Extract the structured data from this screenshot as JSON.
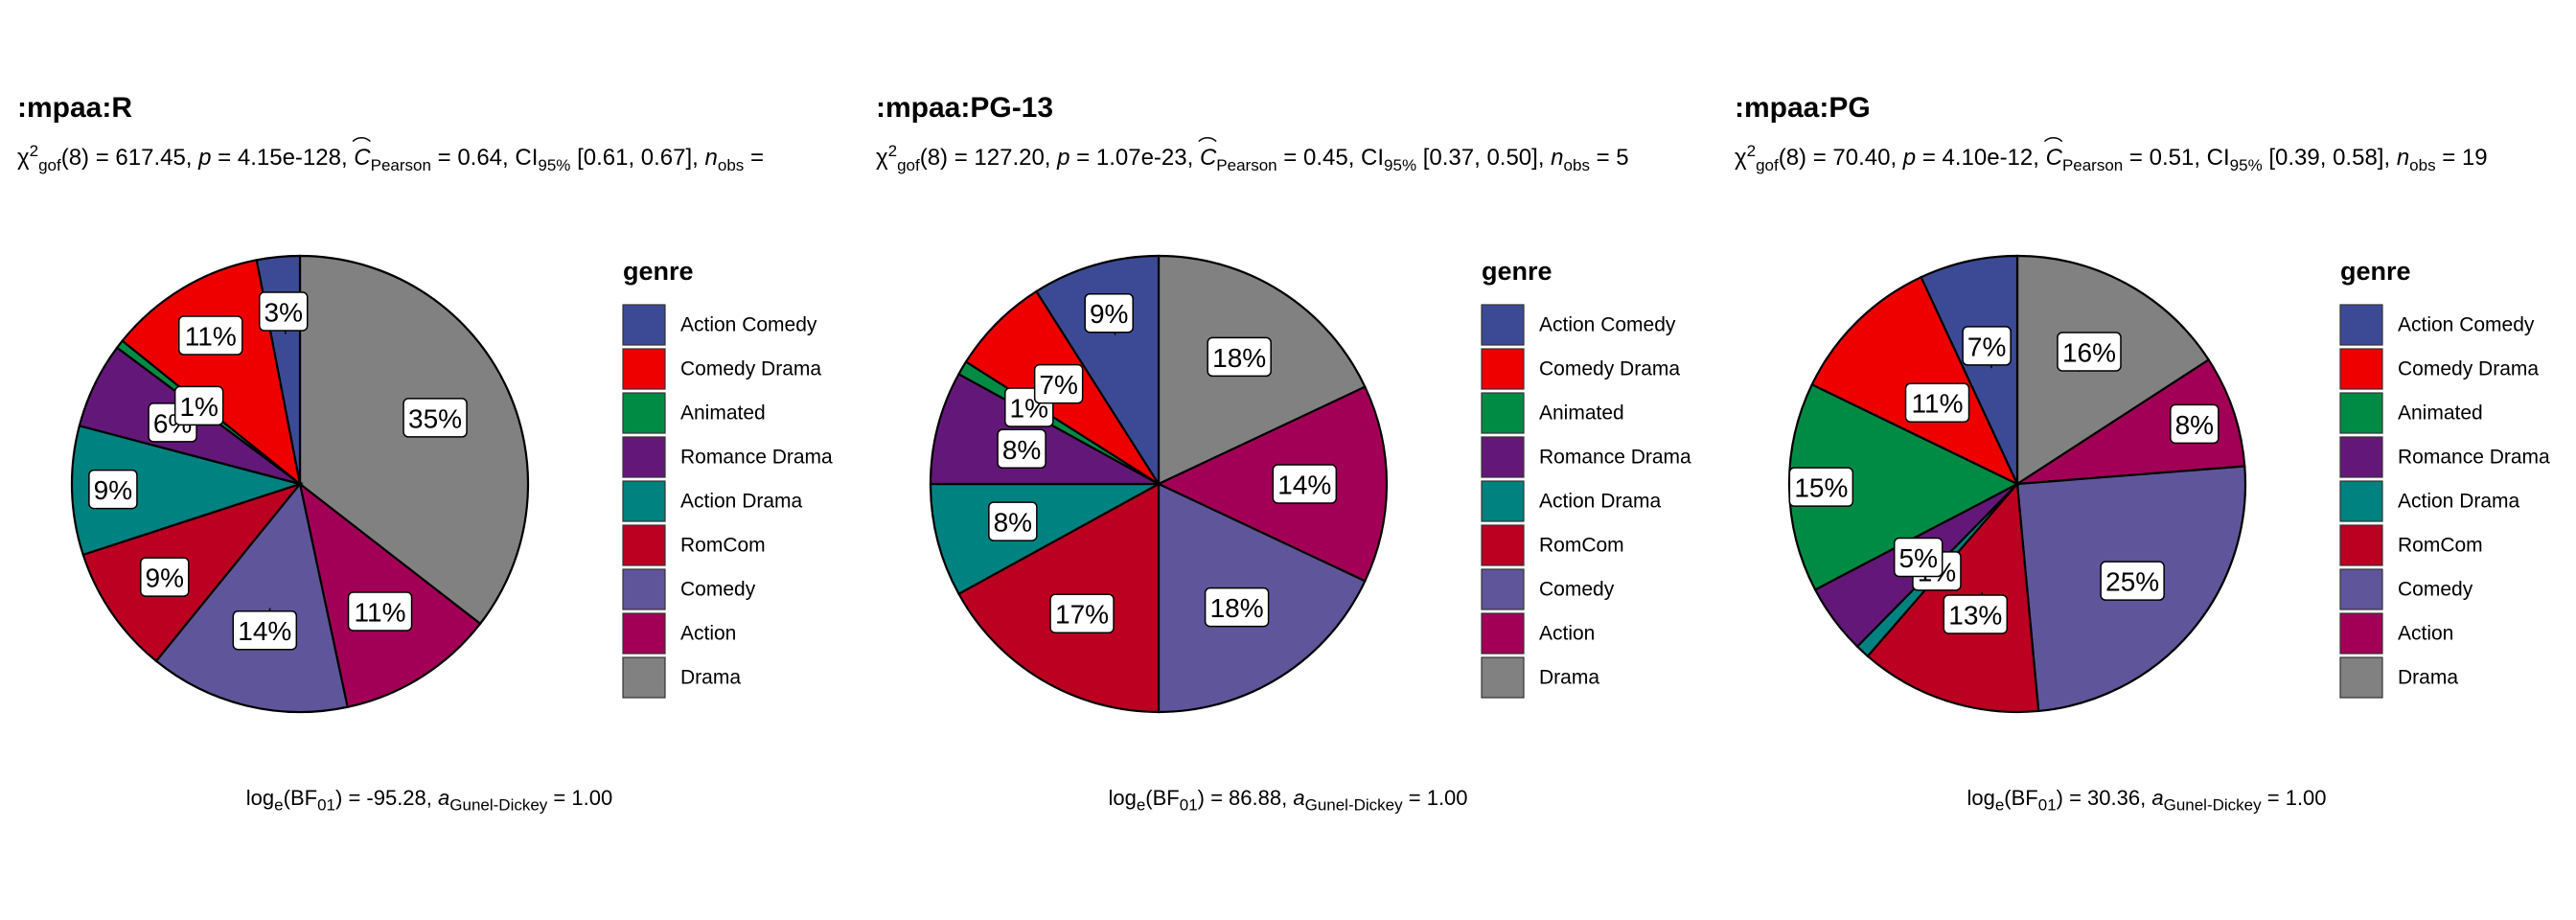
{
  "colors": {
    "Action Comedy": "#3C4A96",
    "Comedy Drama": "#EE0000",
    "Animated": "#008B45",
    "Romance Drama": "#631879",
    "Action Drama": "#008280",
    "RomCom": "#BB0021",
    "Comedy": "#5F559B",
    "Action": "#A20056",
    "Drama": "#808180"
  },
  "legend": {
    "title": "genre",
    "items": [
      "Action Comedy",
      "Comedy Drama",
      "Animated",
      "Romance Drama",
      "Action Drama",
      "RomCom",
      "Comedy",
      "Action",
      "Drama"
    ]
  },
  "chart_data": [
    {
      "type": "pie",
      "title": ":mpaa:R",
      "subtitle": {
        "chi_stat": "(8) = 617.45, ",
        "p_value": " = 4.15e-128, ",
        "c_pearson": " = 0.64, CI",
        "ci": " [0.61, 0.67], ",
        "n_obs": " = "
      },
      "caption": {
        "bf": ") = -95.28, ",
        "gunel": " = 1.00"
      },
      "slices": [
        {
          "category": "Drama",
          "value": 35,
          "label": "35%"
        },
        {
          "category": "Action",
          "value": 11,
          "label": "11%"
        },
        {
          "category": "Comedy",
          "value": 14,
          "label": "14%"
        },
        {
          "category": "RomCom",
          "value": 9,
          "label": "9%"
        },
        {
          "category": "Action Drama",
          "value": 9,
          "label": "9%"
        },
        {
          "category": "Romance Drama",
          "value": 6,
          "label": "6%"
        },
        {
          "category": "Animated",
          "value": 0.6,
          "label": "1%"
        },
        {
          "category": "Comedy Drama",
          "value": 11,
          "label": "11%"
        },
        {
          "category": "Action Comedy",
          "value": 3,
          "label": "3%"
        }
      ]
    },
    {
      "type": "pie",
      "title": ":mpaa:PG-13",
      "subtitle": {
        "chi_stat": "(8) = 127.20, ",
        "p_value": " = 1.07e-23, ",
        "c_pearson": " = 0.45, CI",
        "ci": " [0.37, 0.50], ",
        "n_obs": " = 5"
      },
      "caption": {
        "bf": ") = 86.88, ",
        "gunel": " = 1.00"
      },
      "slices": [
        {
          "category": "Drama",
          "value": 18,
          "label": "18%"
        },
        {
          "category": "Action",
          "value": 14,
          "label": "14%"
        },
        {
          "category": "Comedy",
          "value": 18,
          "label": "18%"
        },
        {
          "category": "RomCom",
          "value": 17,
          "label": "17%"
        },
        {
          "category": "Action Drama",
          "value": 8,
          "label": "8%"
        },
        {
          "category": "Romance Drama",
          "value": 8,
          "label": "8%"
        },
        {
          "category": "Animated",
          "value": 1,
          "label": "1%"
        },
        {
          "category": "Comedy Drama",
          "value": 7,
          "label": "7%"
        },
        {
          "category": "Action Comedy",
          "value": 9,
          "label": "9%"
        }
      ]
    },
    {
      "type": "pie",
      "title": ":mpaa:PG",
      "subtitle": {
        "chi_stat": "(8) = 70.40, ",
        "p_value": " = 4.10e-12, ",
        "c_pearson": " = 0.51, CI",
        "ci": " [0.39, 0.58], ",
        "n_obs": " = 19"
      },
      "caption": {
        "bf": ") = 30.36, ",
        "gunel": " = 1.00"
      },
      "slices": [
        {
          "category": "Drama",
          "value": 16,
          "label": "16%"
        },
        {
          "category": "Action",
          "value": 8,
          "label": "8%"
        },
        {
          "category": "Comedy",
          "value": 25,
          "label": "25%"
        },
        {
          "category": "RomCom",
          "value": 13,
          "label": "13%"
        },
        {
          "category": "Action Drama",
          "value": 1,
          "label": "1%"
        },
        {
          "category": "Romance Drama",
          "value": 5,
          "label": "5%"
        },
        {
          "category": "Animated",
          "value": 15,
          "label": "15%"
        },
        {
          "category": "Comedy Drama",
          "value": 11,
          "label": "11%"
        },
        {
          "category": "Action Comedy",
          "value": 7,
          "label": "7%"
        }
      ]
    }
  ]
}
